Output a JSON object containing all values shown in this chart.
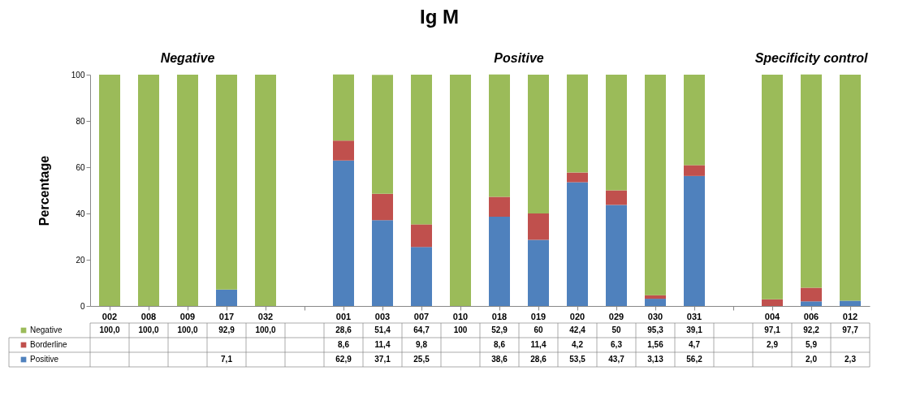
{
  "chart_data": {
    "type": "bar",
    "stacked": true,
    "title": "Ig M",
    "ylabel": "Percentage",
    "categories": [
      "002",
      "008",
      "009",
      "017",
      "032",
      null,
      "001",
      "003",
      "007",
      "010",
      "018",
      "019",
      "020",
      "029",
      "030",
      "031",
      null,
      "004",
      "006",
      "012"
    ],
    "series": [
      {
        "name": "Positive",
        "color": "#4f81bd",
        "values": [
          null,
          null,
          null,
          7.1,
          null,
          null,
          62.9,
          37.1,
          25.5,
          null,
          38.6,
          28.6,
          53.5,
          43.7,
          3.13,
          56.2,
          null,
          null,
          2.0,
          2.3
        ],
        "value_labels": [
          null,
          null,
          null,
          "7,1",
          null,
          null,
          "62,9",
          "37,1",
          "25,5",
          null,
          "38,6",
          "28,6",
          "53,5",
          "43,7",
          "3,13",
          "56,2",
          null,
          null,
          "2,0",
          "2,3"
        ]
      },
      {
        "name": "Borderline",
        "color": "#c0504d",
        "values": [
          null,
          null,
          null,
          null,
          null,
          null,
          8.6,
          11.4,
          9.8,
          null,
          8.6,
          11.4,
          4.2,
          6.3,
          1.56,
          4.7,
          null,
          2.9,
          5.9,
          null
        ],
        "value_labels": [
          null,
          null,
          null,
          null,
          null,
          null,
          "8,6",
          "11,4",
          "9,8",
          null,
          "8,6",
          "11,4",
          "4,2",
          "6,3",
          "1,56",
          "4,7",
          null,
          "2,9",
          "5,9",
          null
        ]
      },
      {
        "name": "Negative",
        "color": "#9bbb59",
        "values": [
          100.0,
          100.0,
          100.0,
          92.9,
          100.0,
          null,
          28.6,
          51.4,
          64.7,
          100,
          52.9,
          60,
          42.4,
          50,
          95.3,
          39.1,
          null,
          97.1,
          92.2,
          97.7
        ],
        "value_labels": [
          "100,0",
          "100,0",
          "100,0",
          "92,9",
          "100,0",
          null,
          "28,6",
          "51,4",
          "64,7",
          "100",
          "52,9",
          "60",
          "42,4",
          "50",
          "95,3",
          "39,1",
          null,
          "97,1",
          "92,2",
          "97,7"
        ]
      }
    ],
    "ylim": [
      0,
      100
    ],
    "yticks": [
      0,
      20,
      40,
      60,
      80,
      100
    ],
    "grid": false,
    "legend": "bottom left",
    "annotations": [
      "Negative",
      "Positive",
      "Specificity control"
    ]
  }
}
